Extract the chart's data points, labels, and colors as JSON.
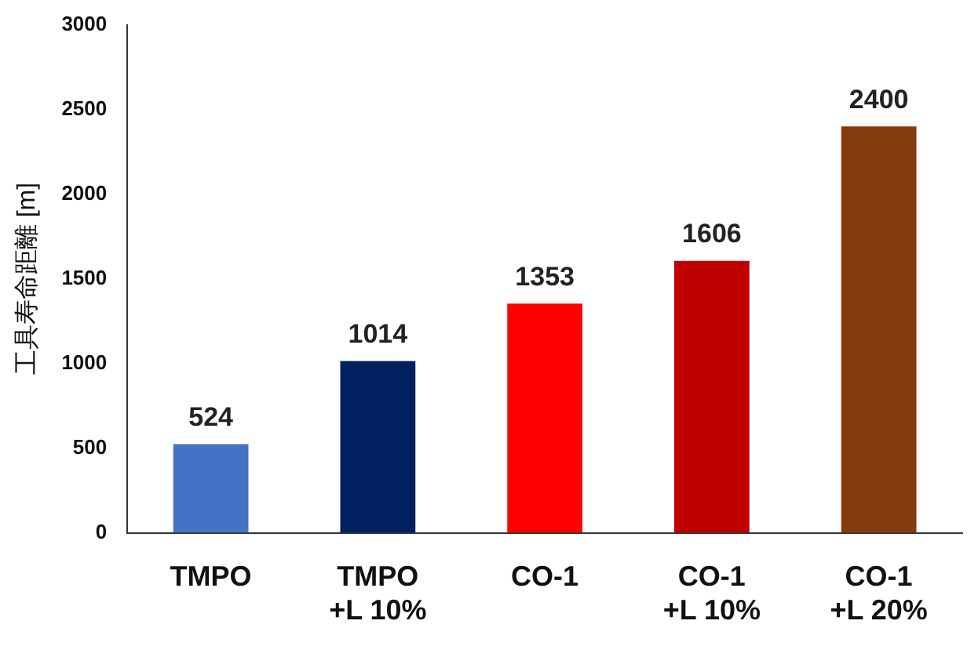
{
  "chart_data": {
    "type": "bar",
    "ylabel": "工具寿命距離 [m]",
    "categories": [
      "TMPO",
      "TMPO +L 10%",
      "CO-1",
      "CO-1 +L 10%",
      "CO-1 +L 20%"
    ],
    "values": [
      524,
      1014,
      1353,
      1606,
      2400
    ],
    "colors": [
      "#4472c4",
      "#002060",
      "#ff0000",
      "#c00000",
      "#843c0c"
    ],
    "ylim": [
      0,
      3000
    ],
    "yticks": [
      0,
      500,
      1000,
      1500,
      2000,
      2500,
      3000
    ],
    "grid": false,
    "data_labels": true,
    "legend": false
  }
}
